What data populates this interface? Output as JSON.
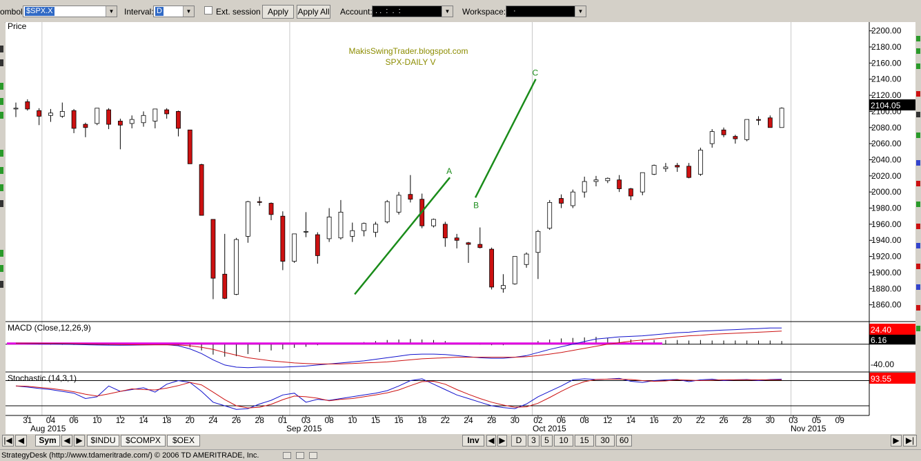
{
  "toolbar": {
    "symbol_label": "ombol:",
    "symbol_value": "$SPX.X",
    "interval_label": "Interval:",
    "interval_value": "D",
    "ext_session_label": "Ext. session",
    "apply_label": "Apply",
    "apply_all_label": "Apply All",
    "account_label": "Account:",
    "account_value": ". .  :  .  :",
    "workspace_label": "Workspace:",
    "workspace_value": "·"
  },
  "chart_data": [
    {
      "type": "candlestick",
      "title": "Price",
      "annotation_lines": [
        "MakisSwingTrader.blogspot.com",
        "SPX-DAILY  V"
      ],
      "ylim": [
        1840,
        2210
      ],
      "y_ticks": [
        "2200.00",
        "2180.00",
        "2160.00",
        "2140.00",
        "2120.00",
        "2100.00",
        "2080.00",
        "2060.00",
        "2040.00",
        "2020.00",
        "2000.00",
        "1980.00",
        "1960.00",
        "1940.00",
        "1920.00",
        "1900.00",
        "1880.00",
        "1860.00"
      ],
      "last_price_label": "2104.05",
      "candles": [
        {
          "o": 2103,
          "h": 2111,
          "l": 2093,
          "c": 2104
        },
        {
          "o": 2112,
          "h": 2115,
          "l": 2101,
          "c": 2103
        },
        {
          "o": 2101,
          "h": 2104,
          "l": 2083,
          "c": 2094
        },
        {
          "o": 2095,
          "h": 2103,
          "l": 2087,
          "c": 2098
        },
        {
          "o": 2094,
          "h": 2111,
          "l": 2092,
          "c": 2100
        },
        {
          "o": 2101,
          "h": 2103,
          "l": 2073,
          "c": 2079
        },
        {
          "o": 2084,
          "h": 2086,
          "l": 2068,
          "c": 2080
        },
        {
          "o": 2085,
          "h": 2104,
          "l": 2083,
          "c": 2104
        },
        {
          "o": 2102,
          "h": 2104,
          "l": 2078,
          "c": 2084
        },
        {
          "o": 2088,
          "h": 2091,
          "l": 2053,
          "c": 2083
        },
        {
          "o": 2085,
          "h": 2095,
          "l": 2079,
          "c": 2090
        },
        {
          "o": 2086,
          "h": 2100,
          "l": 2081,
          "c": 2095
        },
        {
          "o": 2088,
          "h": 2103,
          "l": 2079,
          "c": 2103
        },
        {
          "o": 2102,
          "h": 2104,
          "l": 2091,
          "c": 2097
        },
        {
          "o": 2100,
          "h": 2101,
          "l": 2069,
          "c": 2079
        },
        {
          "o": 2077,
          "h": 2077,
          "l": 2035,
          "c": 2035
        },
        {
          "o": 2034,
          "h": 2035,
          "l": 1971,
          "c": 1971
        },
        {
          "o": 1966,
          "h": 1966,
          "l": 1867,
          "c": 1893
        },
        {
          "o": 1898,
          "h": 1948,
          "l": 1867,
          "c": 1868
        },
        {
          "o": 1873,
          "h": 1943,
          "l": 1872,
          "c": 1941
        },
        {
          "o": 1945,
          "h": 1989,
          "l": 1937,
          "c": 1988
        },
        {
          "o": 1988,
          "h": 1994,
          "l": 1983,
          "c": 1987
        },
        {
          "o": 1986,
          "h": 1987,
          "l": 1965,
          "c": 1972
        },
        {
          "o": 1970,
          "h": 1976,
          "l": 1903,
          "c": 1914
        },
        {
          "o": 1914,
          "h": 1948,
          "l": 1912,
          "c": 1948
        },
        {
          "o": 1951,
          "h": 1975,
          "l": 1944,
          "c": 1951
        },
        {
          "o": 1947,
          "h": 1950,
          "l": 1911,
          "c": 1921
        },
        {
          "o": 1942,
          "h": 1980,
          "l": 1938,
          "c": 1969
        },
        {
          "o": 1943,
          "h": 1990,
          "l": 1941,
          "c": 1975
        },
        {
          "o": 1945,
          "h": 1962,
          "l": 1938,
          "c": 1952
        },
        {
          "o": 1952,
          "h": 1962,
          "l": 1945,
          "c": 1961
        },
        {
          "o": 1950,
          "h": 1963,
          "l": 1944,
          "c": 1960
        },
        {
          "o": 1963,
          "h": 1990,
          "l": 1961,
          "c": 1988
        },
        {
          "o": 1975,
          "h": 2000,
          "l": 1972,
          "c": 1996
        },
        {
          "o": 1997,
          "h": 2021,
          "l": 1987,
          "c": 1991
        },
        {
          "o": 1991,
          "h": 1998,
          "l": 1955,
          "c": 1958
        },
        {
          "o": 1958,
          "h": 1967,
          "l": 1956,
          "c": 1966
        },
        {
          "o": 1960,
          "h": 1963,
          "l": 1932,
          "c": 1943
        },
        {
          "o": 1943,
          "h": 1948,
          "l": 1930,
          "c": 1940
        },
        {
          "o": 1937,
          "h": 1938,
          "l": 1912,
          "c": 1935
        },
        {
          "o": 1935,
          "h": 1956,
          "l": 1930,
          "c": 1931
        },
        {
          "o": 1929,
          "h": 1931,
          "l": 1879,
          "c": 1882
        },
        {
          "o": 1880,
          "h": 1898,
          "l": 1875,
          "c": 1884
        },
        {
          "o": 1886,
          "h": 1920,
          "l": 1885,
          "c": 1920
        },
        {
          "o": 1910,
          "h": 1925,
          "l": 1906,
          "c": 1923
        },
        {
          "o": 1925,
          "h": 1953,
          "l": 1892,
          "c": 1951
        },
        {
          "o": 1955,
          "h": 1990,
          "l": 1953,
          "c": 1987
        },
        {
          "o": 1992,
          "h": 1997,
          "l": 1980,
          "c": 1986
        },
        {
          "o": 1983,
          "h": 2003,
          "l": 1980,
          "c": 2000
        },
        {
          "o": 2000,
          "h": 2019,
          "l": 1993,
          "c": 2013
        },
        {
          "o": 2013,
          "h": 2020,
          "l": 2007,
          "c": 2015
        },
        {
          "o": 2014,
          "h": 2018,
          "l": 2011,
          "c": 2017
        },
        {
          "o": 2015,
          "h": 2021,
          "l": 2000,
          "c": 2004
        },
        {
          "o": 2004,
          "h": 2005,
          "l": 1990,
          "c": 1995
        },
        {
          "o": 2000,
          "h": 2024,
          "l": 1996,
          "c": 2024
        },
        {
          "o": 2022,
          "h": 2034,
          "l": 2021,
          "c": 2033
        },
        {
          "o": 2029,
          "h": 2036,
          "l": 2025,
          "c": 2031
        },
        {
          "o": 2033,
          "h": 2036,
          "l": 2025,
          "c": 2031
        },
        {
          "o": 2032,
          "h": 2036,
          "l": 2017,
          "c": 2018
        },
        {
          "o": 2022,
          "h": 2055,
          "l": 2020,
          "c": 2052
        },
        {
          "o": 2060,
          "h": 2078,
          "l": 2055,
          "c": 2075
        },
        {
          "o": 2077,
          "h": 2080,
          "l": 2068,
          "c": 2071
        },
        {
          "o": 2069,
          "h": 2071,
          "l": 2060,
          "c": 2066
        },
        {
          "o": 2065,
          "h": 2090,
          "l": 2063,
          "c": 2090
        },
        {
          "o": 2090,
          "h": 2094,
          "l": 2083,
          "c": 2089
        },
        {
          "o": 2092,
          "h": 2095,
          "l": 2080,
          "c": 2080
        },
        {
          "o": 2080,
          "h": 2105,
          "l": 2080,
          "c": 2104
        }
      ],
      "trendlines": [
        {
          "from": [
            29.2,
            1873
          ],
          "to": [
            37.4,
            2018
          ],
          "label_end": "A"
        },
        {
          "from": [
            39.6,
            1993
          ],
          "to": [
            44.8,
            2140
          ],
          "label_start": "B",
          "label_end": "C"
        }
      ]
    },
    {
      "type": "line",
      "title": "MACD (Close,12,26,9)",
      "ylim": [
        -52,
        42
      ],
      "y_ticks": [
        "-40.00"
      ],
      "value_labels": [
        "24.40",
        "6.16"
      ],
      "series": [
        {
          "values": [
            2,
            1.5,
            1,
            0.5,
            0,
            -0.5,
            -1,
            -1.5,
            -1.8,
            -2,
            -1.8,
            -1.5,
            -1.2,
            -1,
            -3,
            -9,
            -18,
            -30,
            -40,
            -44,
            -45,
            -44,
            -44,
            -44,
            -43,
            -42,
            -40,
            -38,
            -36,
            -34,
            -32,
            -29,
            -26,
            -23,
            -20,
            -19,
            -19,
            -20,
            -22,
            -24,
            -26,
            -27,
            -27,
            -25,
            -22,
            -16,
            -10,
            -5,
            0,
            5,
            10,
            12,
            14,
            15,
            16,
            18,
            20,
            22,
            23,
            25,
            26,
            27,
            28,
            29,
            30,
            31,
            31
          ]
        },
        {
          "values": [
            2,
            2,
            1.8,
            1.5,
            1.2,
            0.8,
            0.4,
            0,
            -0.4,
            -0.8,
            -1,
            -1.2,
            -1.2,
            -1.2,
            -1.6,
            -3,
            -6,
            -10,
            -16,
            -21,
            -26,
            -29,
            -32,
            -34,
            -36,
            -37,
            -38,
            -38,
            -38,
            -37,
            -36,
            -35,
            -34,
            -32,
            -30,
            -28,
            -27,
            -26,
            -25,
            -25,
            -25,
            -25,
            -25,
            -25,
            -24,
            -22,
            -19,
            -16,
            -12,
            -8,
            -4,
            0,
            3,
            6,
            8,
            10,
            12,
            14,
            16,
            17,
            19,
            20,
            21,
            22,
            23,
            24,
            25
          ]
        }
      ],
      "histogram": [
        0,
        -0.5,
        -0.8,
        -1,
        -1.2,
        -1.3,
        -1.4,
        -1.5,
        -1.4,
        -1.2,
        -0.8,
        -0.3,
        0,
        0.2,
        -1.4,
        -6,
        -12,
        -20,
        -24,
        -23,
        -19,
        -15,
        -12,
        -10,
        -7,
        -5,
        -2,
        0,
        2,
        3,
        4,
        6,
        8,
        9,
        10,
        9,
        8,
        6,
        3,
        1,
        -1,
        -2,
        -2,
        0,
        2,
        6,
        9,
        11,
        12,
        13,
        14,
        12,
        11,
        9,
        8,
        8,
        8,
        8,
        7,
        8,
        7,
        7,
        7,
        7,
        7,
        7,
        6
      ]
    },
    {
      "type": "line",
      "title": "Stochastic (14,3,1)",
      "ylim": [
        -5,
        112
      ],
      "value_labels": [
        "93.55"
      ],
      "series": [
        {
          "values": [
            75,
            72,
            68,
            65,
            60,
            55,
            40,
            45,
            75,
            60,
            65,
            70,
            58,
            80,
            90,
            85,
            60,
            30,
            20,
            10,
            12,
            25,
            35,
            50,
            55,
            30,
            38,
            35,
            40,
            45,
            50,
            55,
            62,
            75,
            90,
            95,
            80,
            65,
            50,
            40,
            30,
            20,
            15,
            12,
            25,
            45,
            60,
            75,
            92,
            95,
            93,
            94,
            96,
            88,
            85,
            90,
            92,
            93,
            87,
            92,
            94,
            90,
            92,
            93,
            90,
            93,
            94
          ]
        },
        {
          "values": [
            75,
            74,
            71,
            68,
            64,
            59,
            52,
            47,
            53,
            60,
            67,
            65,
            64,
            69,
            76,
            85,
            78,
            58,
            37,
            20,
            14,
            16,
            24,
            37,
            47,
            45,
            41,
            34,
            38,
            40,
            45,
            50,
            56,
            64,
            76,
            87,
            88,
            80,
            65,
            52,
            40,
            30,
            22,
            16,
            17,
            27,
            43,
            60,
            76,
            87,
            93,
            94,
            94,
            93,
            90,
            88,
            89,
            92,
            91,
            90,
            91,
            92,
            92,
            92,
            92,
            92,
            92
          ]
        }
      ],
      "levels": [
        90,
        20
      ]
    }
  ],
  "time_axis": {
    "day_labels": [
      "31",
      "04",
      "06",
      "10",
      "12",
      "14",
      "18",
      "20",
      "24",
      "26",
      "28",
      "01",
      "03",
      "08",
      "10",
      "15",
      "16",
      "18",
      "22",
      "24",
      "28",
      "30",
      "02",
      "06",
      "08",
      "12",
      "14",
      "16",
      "20",
      "22",
      "26",
      "28",
      "30",
      "03",
      "05",
      "09"
    ],
    "month_labels": [
      "Aug 2015",
      "Sep 2015",
      "Oct 2015",
      "Nov 2015"
    ]
  },
  "bottom": {
    "sym_label": "Sym",
    "tabs": [
      "$INDU",
      "$COMPX",
      "$OEX"
    ],
    "inv_label": "Inv",
    "intervals": [
      "D",
      "3",
      "5",
      "10",
      "15",
      "30",
      "60"
    ]
  },
  "status_text": "StrategyDesk (http://www.tdameritrade.com/) © 2006 TD AMERITRADE, Inc.",
  "colors": {
    "up_candle": "#ffffff",
    "down_candle": "#cc1111",
    "trendline": "#1a8c1a",
    "annotation_text": "#8c8c00",
    "macd_line": "#1010cc",
    "signal_line": "#cc1010",
    "zero_line": "#e000e0",
    "value_box": "#ff0000",
    "last_price_box": "#000000"
  }
}
